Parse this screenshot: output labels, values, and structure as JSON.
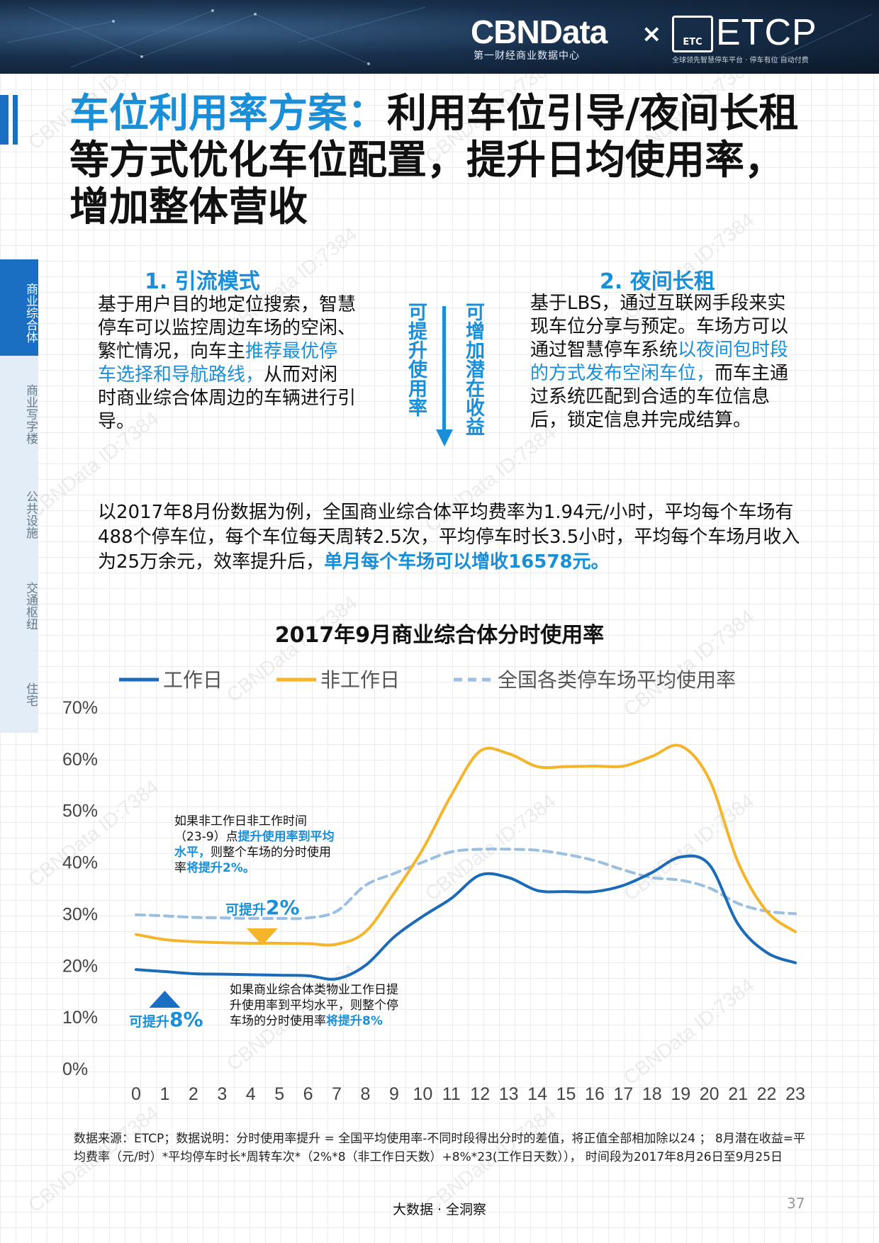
{
  "header": {
    "brand": "CBNData",
    "brand_sub": "第一财经商业数据中心",
    "times": "×",
    "etc_logo": "ETC",
    "partner": "ETCP",
    "partner_sub": "全球领先智慧停车平台 · 停车有位 自动付费"
  },
  "title": {
    "highlight": "车位利用率方案：",
    "rest": "利用车位引导/夜间长租等方式优化车位配置，提升日均使用率，增加整体营收"
  },
  "sidenav": [
    "商业综合体",
    "商业写字楼",
    "公共设施",
    "交通枢纽",
    "住宅"
  ],
  "section1": {
    "title": "1. 引流模式",
    "text_a": "基于用户目的地定位搜索，智慧停车可以监控周边车场的空闲、繁忙情况，向车主",
    "text_blue": "推荐最优停车选择和导航路线，",
    "text_b": "从而对闲时商业综合体周边的车辆进行引导。"
  },
  "middle": {
    "left": "可提升使用率",
    "right": "可增加潜在收益"
  },
  "section2": {
    "title": "2. 夜间长租",
    "text_a": "基于LBS，通过互联网手段来实现车位分享与预定。车场方可以通过智慧停车系统",
    "text_blue": "以夜间包时段的方式发布空闲车位，",
    "text_b": "而车主通过系统匹配到合适的车位信息后，锁定信息并完成结算。"
  },
  "body": {
    "text": "以2017年8月份数据为例，全国商业综合体平均费率为1.94元/小时，平均每个车场有488个停车位，每个车位每天周转2.5次，平均停车时长3.5小时，平均每个车场月收入为25万余元，效率提升后，",
    "bold": "单月每个车场可以增收16578元。"
  },
  "chart_data": {
    "type": "line",
    "title": "2017年9月商业综合体分时使用率",
    "x": [
      0,
      1,
      2,
      3,
      4,
      5,
      6,
      7,
      8,
      9,
      10,
      11,
      12,
      13,
      14,
      15,
      16,
      17,
      18,
      19,
      20,
      21,
      22,
      23
    ],
    "ylim": [
      0,
      70
    ],
    "yticks": [
      "0%",
      "10%",
      "20%",
      "30%",
      "40%",
      "50%",
      "60%",
      "70%"
    ],
    "legend_position": "top",
    "series": [
      {
        "name": "工作日",
        "color": "#1c6bb8",
        "dash": false,
        "values": [
          19.2,
          18.8,
          18.4,
          18.3,
          18.2,
          18.1,
          18.0,
          17.4,
          20.0,
          25.5,
          29.5,
          33.0,
          37.5,
          37.0,
          34.5,
          34.3,
          34.3,
          35.5,
          38.0,
          41.0,
          39.5,
          28.0,
          22.5,
          20.5
        ]
      },
      {
        "name": "非工作日",
        "color": "#f5b52a",
        "dash": false,
        "values": [
          26.0,
          25.0,
          24.6,
          24.4,
          24.3,
          24.3,
          24.2,
          24.1,
          26.5,
          34.0,
          42.5,
          53.0,
          61.5,
          61.0,
          58.5,
          58.5,
          58.6,
          58.6,
          60.5,
          62.5,
          56.0,
          40.0,
          30.5,
          26.5
        ]
      },
      {
        "name": "全国各类停车场平均使用率",
        "color": "#9bbfe0",
        "dash": true,
        "values": [
          29.8,
          29.6,
          29.3,
          29.2,
          29.1,
          29.1,
          29.2,
          30.5,
          35.5,
          37.8,
          40.0,
          42.0,
          42.5,
          42.5,
          42.3,
          41.5,
          40.3,
          38.5,
          37.0,
          36.5,
          35.0,
          32.0,
          30.5,
          30.0
        ]
      }
    ],
    "annotations": {
      "top_text_a": "如果非工作日非工作时间（23-9）点",
      "top_text_blue": "提升使用率到平均水平，",
      "top_text_b": "则整个车场的分时使用率",
      "top_text_bold": "将提升2%。",
      "top_tag_small": "可提升",
      "top_tag_big": "2%",
      "bottom_text_a": "如果商业综合体类物业工作日提升使用率到平均水平，则整个停车场的分时使用率",
      "bottom_text_bold": "将提升8%",
      "bottom_tag_small": "可提升",
      "bottom_tag_big": "8%",
      "orange_marker_color": "#f5b52a",
      "blue_marker_color": "#1a6fc3"
    }
  },
  "footnote": "数据来源：ETCP；数据说明：分时使用率提升 = 全国平均使用率-不同时段得出分时的差值，将正值全部相加除以24 ； 8月潜在收益=平均费率（元/时）*平均停车时长*周转车次*（2%*8（非工作日天数）+8%*23(工作日天数））， 时间段为2017年8月26日至9月25日",
  "footer": "大数据 · 全洞察",
  "page_number": "37",
  "watermark": "CBNData ID:7384"
}
